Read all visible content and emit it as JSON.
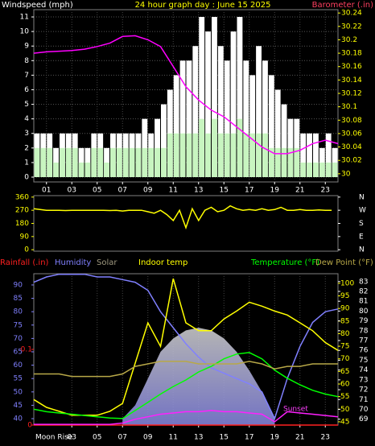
{
  "chart_data": [
    {
      "type": "bar",
      "title": "24 hour graph day : June 15 2025",
      "ylabel": "Windspeed (mph)",
      "y2label": "Barometer (.in)",
      "x": [
        0,
        0.5,
        1,
        1.5,
        2,
        2.5,
        3,
        3.5,
        4,
        4.5,
        5,
        5.5,
        6,
        6.5,
        7,
        7.5,
        8,
        8.5,
        9,
        9.5,
        10,
        10.5,
        11,
        11.5,
        12,
        12.5,
        13,
        13.5,
        14,
        14.5,
        15,
        15.5,
        16,
        16.5,
        17,
        17.5,
        18,
        18.5,
        19,
        19.5,
        20,
        20.5,
        21,
        21.5,
        22,
        22.5,
        23,
        23.5
      ],
      "xlim": [
        0,
        24
      ],
      "xticks": [
        {
          "value": 1,
          "label": "01"
        },
        {
          "value": 3,
          "label": "03"
        },
        {
          "value": 5,
          "label": "05"
        },
        {
          "value": 7,
          "label": "07"
        },
        {
          "value": 9,
          "label": "09"
        },
        {
          "value": 11,
          "label": "11"
        },
        {
          "value": 13,
          "label": "13"
        },
        {
          "value": 15,
          "label": "15"
        },
        {
          "value": 17,
          "label": "17"
        },
        {
          "value": 19,
          "label": "19"
        },
        {
          "value": 21,
          "label": "21"
        },
        {
          "value": 23,
          "label": "23"
        }
      ],
      "ylim": [
        0,
        11.5
      ],
      "yticks": [
        0,
        1,
        2,
        3,
        4,
        5,
        6,
        7,
        8,
        9,
        10,
        11
      ],
      "y2lim": [
        29.995,
        30.245
      ],
      "y2ticks": [
        30,
        30.02,
        30.04,
        30.06,
        30.08,
        30.1,
        30.12,
        30.14,
        30.16,
        30.18,
        30.2,
        30.22,
        30.24
      ],
      "grid": true,
      "series": [
        {
          "color": "#ffffff",
          "values": [
            3,
            3,
            3,
            2,
            3,
            3,
            3,
            2,
            2,
            3,
            3,
            2,
            3,
            3,
            3,
            3,
            3,
            4,
            3,
            4,
            5,
            6,
            7,
            8,
            8,
            9,
            11,
            10,
            11,
            9,
            8,
            10,
            11,
            8,
            7,
            9,
            8,
            7,
            6,
            5,
            4,
            4,
            3,
            3,
            3,
            2,
            3,
            2
          ]
        },
        {
          "color": "#c8f5c0",
          "values": [
            2,
            2,
            2,
            1,
            2,
            2,
            2,
            1,
            1,
            2,
            2,
            1,
            2,
            2,
            2,
            2,
            2,
            2,
            2,
            2,
            2,
            3,
            3,
            3,
            3,
            3,
            4,
            3,
            4,
            3,
            3,
            3,
            4,
            3,
            3,
            3,
            3,
            2,
            2,
            2,
            2,
            2,
            1,
            1,
            1,
            1,
            1,
            1
          ]
        },
        {
          "type": "line",
          "axis": "y2",
          "color": "#ff00ff",
          "x": [
            0,
            1,
            2,
            3,
            4,
            5,
            6,
            7,
            8,
            9,
            10,
            11,
            12,
            13,
            14,
            15,
            16,
            17,
            18,
            19,
            20,
            21,
            22,
            23,
            24
          ],
          "values": [
            30.18,
            30.182,
            30.183,
            30.184,
            30.186,
            30.19,
            30.195,
            30.205,
            30.206,
            30.2,
            30.19,
            30.16,
            30.13,
            30.11,
            30.095,
            30.085,
            30.07,
            30.055,
            30.04,
            30.03,
            30.03,
            30.035,
            30.045,
            30.05,
            30.045
          ]
        }
      ]
    },
    {
      "type": "line",
      "x": [
        0,
        0.5,
        1,
        1.5,
        2,
        2.5,
        3,
        3.5,
        4,
        4.5,
        5,
        5.5,
        6,
        6.5,
        7,
        7.5,
        8,
        8.5,
        9,
        9.5,
        10,
        10.5,
        11,
        11.5,
        12,
        12.5,
        13,
        13.5,
        14,
        14.5,
        15,
        15.5,
        16,
        16.5,
        17,
        17.5,
        18,
        18.5,
        19,
        19.5,
        20,
        20.5,
        21,
        21.5,
        22,
        22.5,
        23,
        23.5
      ],
      "xlim": [
        0,
        24
      ],
      "ylim": [
        -10,
        370
      ],
      "yticks": [
        360,
        270,
        180,
        90,
        0
      ],
      "y2ticks": [
        {
          "value": 360,
          "label": "N"
        },
        {
          "value": 270,
          "label": "W"
        },
        {
          "value": 180,
          "label": "S"
        },
        {
          "value": 90,
          "label": "E"
        },
        {
          "value": 0,
          "label": "N"
        }
      ],
      "series": [
        {
          "color": "#ffff00",
          "values": [
            280,
            275,
            270,
            270,
            270,
            268,
            270,
            270,
            270,
            270,
            270,
            270,
            268,
            270,
            265,
            270,
            270,
            270,
            260,
            250,
            270,
            240,
            200,
            270,
            150,
            280,
            200,
            270,
            290,
            260,
            270,
            300,
            280,
            270,
            275,
            270,
            280,
            270,
            275,
            290,
            270,
            270,
            275,
            270,
            270,
            272,
            270,
            270
          ]
        }
      ]
    },
    {
      "type": "line",
      "x": [
        0,
        1,
        2,
        3,
        4,
        5,
        6,
        7,
        8,
        9,
        10,
        11,
        12,
        13,
        14,
        15,
        16,
        17,
        18,
        19,
        20,
        21,
        22,
        23,
        24
      ],
      "xlim": [
        0,
        24
      ],
      "xticks": [
        {
          "value": 3,
          "label": "03"
        },
        {
          "value": 5,
          "label": "05"
        },
        {
          "value": 7,
          "label": "07"
        },
        {
          "value": 9,
          "label": "09"
        },
        {
          "value": 11,
          "label": "11"
        },
        {
          "value": 13,
          "label": "13"
        },
        {
          "value": 15,
          "label": "15"
        },
        {
          "value": 17,
          "label": "17"
        },
        {
          "value": 19,
          "label": "19"
        },
        {
          "value": 21,
          "label": "21"
        },
        {
          "value": 23,
          "label": "23"
        }
      ],
      "annotations": [
        "Moon Rise",
        "Sunset"
      ],
      "ylim": [
        37.6,
        94.2
      ],
      "yticks": [
        40,
        45,
        50,
        55,
        60,
        65,
        70,
        75,
        80,
        85,
        90
      ],
      "y2lim": [
        43.7,
        103.8
      ],
      "y2ticks": [
        45,
        50,
        55,
        60,
        65,
        70,
        75,
        80,
        85,
        90,
        95,
        100
      ],
      "y3lim": [
        68.4,
        83.8
      ],
      "y3ticks": [
        69,
        70,
        71,
        72,
        73,
        74,
        75,
        76,
        77,
        78,
        79,
        80,
        81,
        82,
        83
      ],
      "y4lim": [
        0,
        0.2
      ],
      "y4ticks": [
        0,
        0.1
      ],
      "series": [
        {
          "name": "Rainfall (.in)",
          "axis": "y4",
          "color": "#ff2020",
          "values": [
            0,
            0,
            0,
            0,
            0,
            0,
            0,
            0,
            0,
            0,
            0,
            0,
            0,
            0,
            0,
            0,
            0,
            0,
            0,
            0,
            0,
            0,
            0,
            0,
            0
          ]
        },
        {
          "name": "Humidity",
          "color": "#8080ff",
          "values": [
            91,
            93,
            94,
            94,
            94,
            93,
            93,
            92,
            91,
            88,
            80,
            74,
            68,
            63,
            59,
            57,
            55,
            53,
            50,
            40,
            55,
            67,
            76,
            80,
            81
          ]
        },
        {
          "name": "Solar",
          "type": "area",
          "color": "#a09a80",
          "values": [
            null,
            null,
            null,
            null,
            null,
            null,
            null,
            40,
            45,
            55,
            65,
            70,
            73,
            74,
            73,
            70,
            65,
            58,
            50,
            40,
            null,
            null,
            null,
            null,
            null
          ]
        },
        {
          "name": "Indoor temp",
          "axis": "y3",
          "color": "#ffff00",
          "values": [
            71,
            70.2,
            69.8,
            69.4,
            69.4,
            69.4,
            69.8,
            70.6,
            74.7,
            78.8,
            76.4,
            83.3,
            78.8,
            78,
            78,
            79.2,
            80,
            80.9,
            80.5,
            80,
            79.6,
            78.8,
            78,
            76.8,
            76
          ]
        },
        {
          "name": "Temperature (°F)",
          "axis": "y2",
          "color": "#00ff00",
          "values": [
            50,
            49,
            48.5,
            48,
            47.5,
            47,
            46.5,
            46.3,
            49.5,
            52.7,
            56,
            59,
            61.6,
            64.8,
            67,
            70,
            71.9,
            72.5,
            70,
            65.5,
            62.3,
            59.7,
            57.5,
            56,
            55
          ]
        },
        {
          "name": "Dew Point (°F)",
          "axis": "y2",
          "color": "#b8a848",
          "values": [
            64,
            64,
            64,
            63,
            63,
            63,
            63,
            64,
            67,
            68,
            69,
            69,
            69,
            68,
            68,
            68,
            68,
            69,
            68,
            66,
            67,
            67,
            68,
            68,
            68
          ]
        },
        {
          "axis": "y2",
          "color": "#ff20ff",
          "values": [
            44,
            44,
            44,
            44,
            44,
            44,
            44,
            44.5,
            46,
            47,
            48,
            48.5,
            49,
            49,
            49.5,
            49,
            49,
            48.5,
            48,
            45,
            49,
            48.5,
            48,
            47.5,
            47
          ]
        }
      ]
    }
  ]
}
